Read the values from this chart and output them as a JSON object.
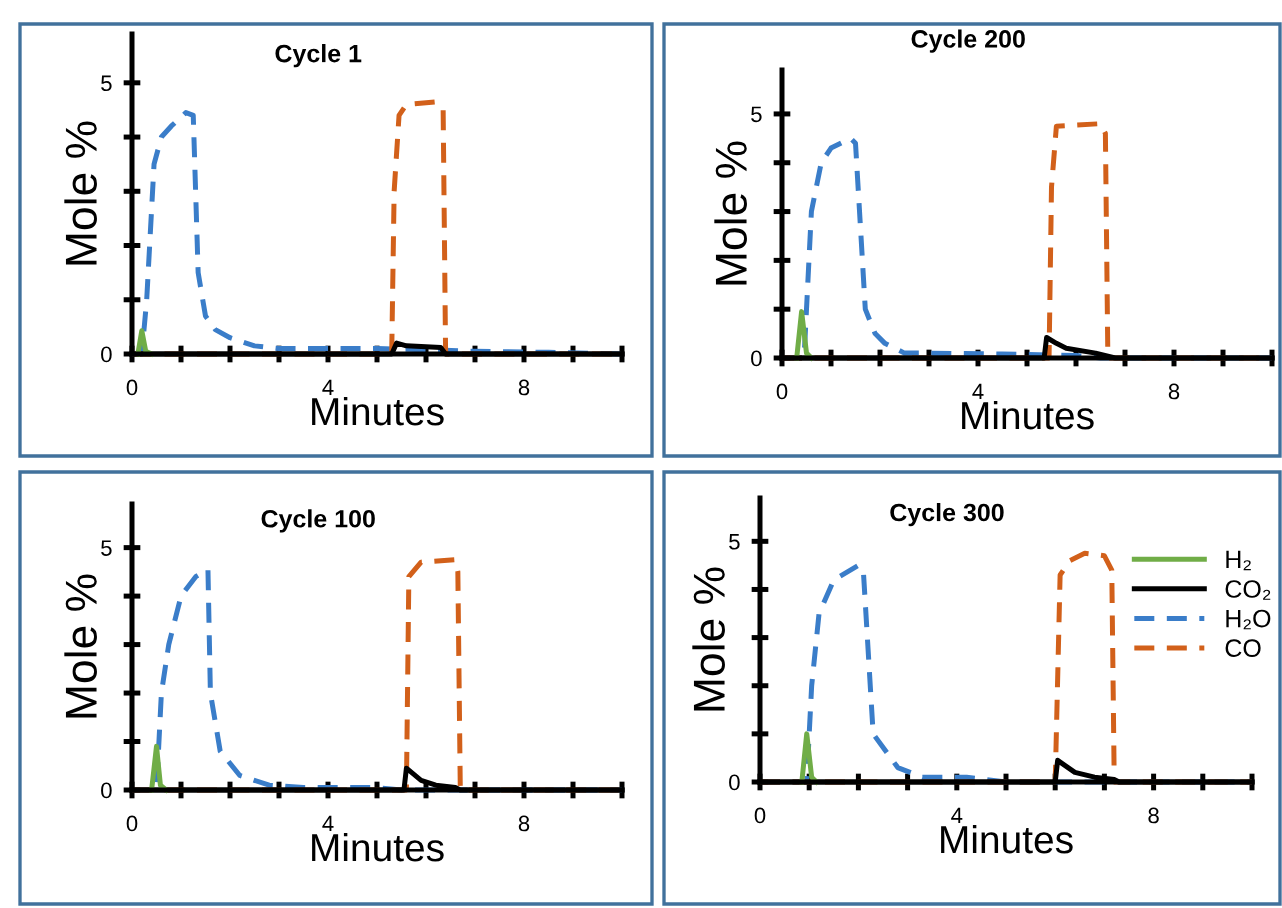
{
  "chart_data": [
    {
      "type": "line",
      "title": "Cycle 1",
      "xlabel": "Minutes",
      "ylabel": "Mole %",
      "xlim": [
        0,
        10
      ],
      "ylim": [
        0,
        5.9
      ],
      "xticks": [
        0,
        {
          "value": 1,
          "label": null
        },
        {
          "value": 2,
          "label": null
        },
        {
          "value": 3,
          "label": null
        },
        4,
        {
          "value": 5,
          "label": null
        },
        {
          "value": 6,
          "label": null
        },
        {
          "value": 7,
          "label": null
        },
        8,
        {
          "value": 9,
          "label": null
        },
        {
          "value": 10,
          "label": null
        }
      ],
      "yticks": [
        0,
        {
          "value": 1,
          "label": null
        },
        {
          "value": 2,
          "label": null
        },
        {
          "value": 3,
          "label": null
        },
        {
          "value": 4,
          "label": null
        },
        5
      ],
      "grid": false,
      "legend": false,
      "series": [
        {
          "color": "#3a7dc9",
          "line_style": "dashed",
          "x": [
            0,
            0.2,
            0.3,
            0.45,
            0.6,
            0.8,
            1.1,
            1.25,
            1.35,
            1.5,
            1.7,
            2.0,
            2.5,
            3.0,
            4.0,
            5.0,
            6.0,
            7.0,
            8.5,
            10
          ],
          "values": [
            0,
            0,
            1.0,
            3.5,
            4.0,
            4.2,
            4.45,
            4.4,
            1.5,
            0.7,
            0.45,
            0.3,
            0.15,
            0.1,
            0.1,
            0.1,
            0.08,
            0.05,
            0.03,
            0
          ]
        },
        {
          "color": "#d2601a",
          "line_style": "dashed",
          "x": [
            0,
            5.3,
            5.35,
            5.45,
            5.6,
            6.2,
            6.35,
            6.4,
            10
          ],
          "values": [
            0,
            0,
            3.0,
            4.4,
            4.6,
            4.65,
            4.5,
            0,
            0
          ]
        },
        {
          "color": "#70ad47",
          "line_style": "solid",
          "x": [
            0.12,
            0.2,
            0.28,
            0.4
          ],
          "values": [
            0,
            0.43,
            0.05,
            0
          ]
        },
        {
          "color": "#000000",
          "line_style": "solid",
          "x": [
            0,
            5.3,
            5.4,
            5.6,
            6.3,
            6.4,
            10
          ],
          "values": [
            0,
            0,
            0.2,
            0.15,
            0.12,
            0,
            0
          ]
        }
      ]
    },
    {
      "type": "line",
      "title": "Cycle 200",
      "xlabel": "Minutes",
      "ylabel": "Mole %",
      "xlim": [
        0,
        10
      ],
      "ylim": [
        0,
        5.9
      ],
      "xticks": [
        0,
        {
          "value": 1,
          "label": null
        },
        {
          "value": 2,
          "label": null
        },
        {
          "value": 3,
          "label": null
        },
        4,
        {
          "value": 5,
          "label": null
        },
        {
          "value": 6,
          "label": null
        },
        {
          "value": 7,
          "label": null
        },
        8,
        {
          "value": 9,
          "label": null
        },
        {
          "value": 10,
          "label": null
        }
      ],
      "yticks": [
        0,
        {
          "value": 1,
          "label": null
        },
        {
          "value": 2,
          "label": null
        },
        {
          "value": 3,
          "label": null
        },
        {
          "value": 4,
          "label": null
        },
        5
      ],
      "grid": false,
      "legend": false,
      "series": [
        {
          "color": "#3a7dc9",
          "line_style": "dashed",
          "x": [
            0,
            0.45,
            0.6,
            0.8,
            1.0,
            1.4,
            1.5,
            1.7,
            1.9,
            2.1,
            2.5,
            3.0,
            4.5,
            6.0,
            6.5,
            10
          ],
          "values": [
            0,
            0,
            3.0,
            4.0,
            4.3,
            4.5,
            4.4,
            1.0,
            0.5,
            0.3,
            0.1,
            0.1,
            0.08,
            0.05,
            0,
            0
          ]
        },
        {
          "color": "#d2601a",
          "line_style": "dashed",
          "x": [
            0,
            5.45,
            5.5,
            5.6,
            6.5,
            6.6,
            6.65,
            10
          ],
          "values": [
            0,
            0,
            3.5,
            4.75,
            4.8,
            4.6,
            0,
            0
          ]
        },
        {
          "color": "#70ad47",
          "line_style": "solid",
          "x": [
            0.3,
            0.4,
            0.5,
            0.6
          ],
          "values": [
            0,
            0.95,
            0.1,
            0
          ]
        },
        {
          "color": "#000000",
          "line_style": "solid",
          "x": [
            0,
            5.35,
            5.4,
            5.6,
            5.8,
            6.4,
            6.8,
            10
          ],
          "values": [
            0,
            0,
            0.42,
            0.3,
            0.2,
            0.1,
            0,
            0
          ]
        }
      ]
    },
    {
      "type": "line",
      "title": "Cycle 100",
      "xlabel": "Minutes",
      "ylabel": "Mole %",
      "xlim": [
        0,
        10
      ],
      "ylim": [
        0,
        5.9
      ],
      "xticks": [
        0,
        {
          "value": 1,
          "label": null
        },
        {
          "value": 2,
          "label": null
        },
        {
          "value": 3,
          "label": null
        },
        4,
        {
          "value": 5,
          "label": null
        },
        {
          "value": 6,
          "label": null
        },
        {
          "value": 7,
          "label": null
        },
        8,
        {
          "value": 9,
          "label": null
        },
        {
          "value": 10,
          "label": null
        }
      ],
      "yticks": [
        0,
        {
          "value": 1,
          "label": null
        },
        {
          "value": 2,
          "label": null
        },
        {
          "value": 3,
          "label": null
        },
        {
          "value": 4,
          "label": null
        },
        5
      ],
      "grid": false,
      "legend": false,
      "series": [
        {
          "color": "#3a7dc9",
          "line_style": "dashed",
          "x": [
            0,
            0.5,
            0.6,
            0.75,
            1.0,
            1.3,
            1.55,
            1.6,
            1.8,
            2.2,
            2.8,
            3.5,
            5.0,
            5.5,
            10
          ],
          "values": [
            0,
            0,
            2.0,
            3.0,
            4.0,
            4.4,
            4.55,
            2.0,
            0.8,
            0.3,
            0.1,
            0.05,
            0.05,
            0,
            0
          ]
        },
        {
          "color": "#d2601a",
          "line_style": "dashed",
          "x": [
            0,
            5.6,
            5.65,
            5.9,
            6.6,
            6.65,
            6.7,
            10
          ],
          "values": [
            0,
            0,
            4.4,
            4.7,
            4.75,
            4.5,
            0,
            0
          ]
        },
        {
          "color": "#70ad47",
          "line_style": "solid",
          "x": [
            0.4,
            0.5,
            0.58,
            0.7
          ],
          "values": [
            0,
            0.9,
            0.1,
            0
          ]
        },
        {
          "color": "#000000",
          "line_style": "solid",
          "x": [
            0,
            5.55,
            5.6,
            5.9,
            6.2,
            6.6,
            6.7,
            10
          ],
          "values": [
            0,
            0,
            0.45,
            0.2,
            0.1,
            0.05,
            0,
            0
          ]
        }
      ]
    },
    {
      "type": "line",
      "title": "Cycle 300",
      "xlabel": "Minutes",
      "ylabel": "Mole %",
      "xlim": [
        0,
        10
      ],
      "ylim": [
        0,
        5.9
      ],
      "xticks": [
        0,
        {
          "value": 1,
          "label": null
        },
        {
          "value": 2,
          "label": null
        },
        {
          "value": 3,
          "label": null
        },
        4,
        {
          "value": 5,
          "label": null
        },
        {
          "value": 6,
          "label": null
        },
        {
          "value": 7,
          "label": null
        },
        8,
        {
          "value": 9,
          "label": null
        },
        {
          "value": 10,
          "label": null
        }
      ],
      "yticks": [
        0,
        {
          "value": 1,
          "label": null
        },
        {
          "value": 2,
          "label": null
        },
        {
          "value": 3,
          "label": null
        },
        {
          "value": 4,
          "label": null
        },
        5
      ],
      "grid": false,
      "legend": "right",
      "series": [
        {
          "name": "H₂",
          "color": "#70ad47",
          "line_style": "solid",
          "x": [
            0.85,
            0.95,
            1.05,
            1.15
          ],
          "values": [
            0,
            1.0,
            0.1,
            0
          ]
        },
        {
          "name": "CO₂",
          "color": "#000000",
          "line_style": "solid",
          "x": [
            0,
            6.0,
            6.05,
            6.4,
            6.8,
            7.2,
            7.3,
            10
          ],
          "values": [
            0,
            0,
            0.45,
            0.2,
            0.1,
            0.05,
            0,
            0
          ]
        },
        {
          "name": "H₂O",
          "color": "#3a7dc9",
          "line_style": "dashed",
          "x": [
            0,
            0.95,
            1.05,
            1.2,
            1.5,
            2.0,
            2.1,
            2.3,
            2.8,
            3.3,
            4.2,
            5.0,
            10
          ],
          "values": [
            0,
            0,
            2.0,
            3.5,
            4.2,
            4.5,
            4.4,
            1.0,
            0.3,
            0.1,
            0.1,
            0,
            0
          ]
        },
        {
          "name": "CO",
          "color": "#d2601a",
          "line_style": "dashed",
          "x": [
            0,
            6.0,
            6.1,
            6.3,
            6.6,
            7.0,
            7.15,
            7.2,
            10
          ],
          "values": [
            0,
            0,
            4.3,
            4.6,
            4.75,
            4.7,
            4.4,
            0,
            0
          ]
        }
      ]
    }
  ]
}
